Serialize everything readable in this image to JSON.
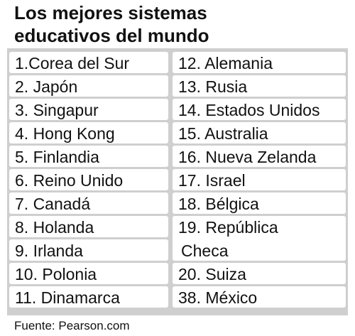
{
  "header": {
    "title_lines": [
      "Los mejores sistemas",
      "educativos del mundo"
    ]
  },
  "table": {
    "columns": [
      [
        [
          "1.Corea del Sur"
        ],
        [
          "2. Japón"
        ],
        [
          "3. Singapur"
        ],
        [
          "4. Hong Kong"
        ],
        [
          "5. Finlandia"
        ],
        [
          "6. Reino Unido"
        ],
        [
          "7. Canadá"
        ],
        [
          "8. Holanda"
        ],
        [
          "9. Irlanda"
        ],
        [
          "10. Polonia"
        ],
        [
          "11. Dinamarca"
        ]
      ],
      [
        [
          "12. Alemania"
        ],
        [
          "13. Rusia"
        ],
        [
          "14. Estados Unidos"
        ],
        [
          "15. Australia"
        ],
        [
          "16. Nueva Zelanda"
        ],
        [
          "17. Israel"
        ],
        [
          "18. Bélgica"
        ],
        [
          "19. República",
          "Checa"
        ],
        [
          "20. Suiza"
        ],
        [
          "38. México"
        ]
      ]
    ]
  },
  "footer": {
    "source": "Fuente: Pearson.com"
  }
}
